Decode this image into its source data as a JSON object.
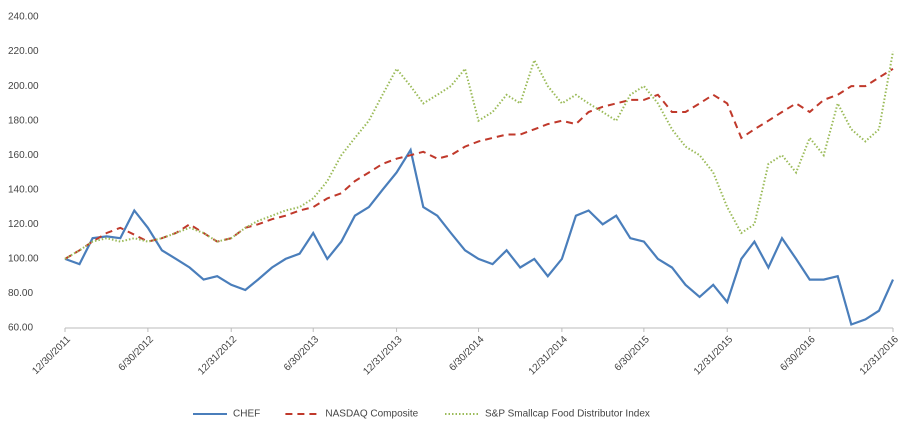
{
  "chart_data": {
    "type": "line",
    "x": [
      "12/30/2011",
      "1/31/2012",
      "2/29/2012",
      "3/31/2012",
      "4/30/2012",
      "5/31/2012",
      "6/30/2012",
      "7/31/2012",
      "8/31/2012",
      "9/30/2012",
      "10/31/2012",
      "11/30/2012",
      "12/31/2012",
      "1/31/2013",
      "2/28/2013",
      "3/31/2013",
      "4/30/2013",
      "5/31/2013",
      "6/30/2013",
      "7/31/2013",
      "8/31/2013",
      "9/30/2013",
      "10/31/2013",
      "11/30/2013",
      "12/31/2013",
      "1/31/2014",
      "2/28/2014",
      "3/31/2014",
      "4/30/2014",
      "5/31/2014",
      "6/30/2014",
      "7/31/2014",
      "8/31/2014",
      "9/30/2014",
      "10/31/2014",
      "11/30/2014",
      "12/31/2014",
      "1/31/2015",
      "2/28/2015",
      "3/31/2015",
      "4/30/2015",
      "5/31/2015",
      "6/30/2015",
      "7/31/2015",
      "8/31/2015",
      "9/30/2015",
      "10/31/2015",
      "11/30/2015",
      "12/31/2015",
      "1/31/2016",
      "2/29/2016",
      "3/31/2016",
      "4/30/2016",
      "5/31/2016",
      "6/30/2016",
      "7/31/2016",
      "8/31/2016",
      "9/30/2016",
      "10/31/2016",
      "11/30/2016",
      "12/31/2016"
    ],
    "series": [
      {
        "name": "CHEF",
        "color": "#4a7ebb",
        "dash": "solid",
        "values": [
          100,
          97,
          112,
          113,
          112,
          128,
          118,
          105,
          100,
          95,
          88,
          90,
          85,
          82,
          88,
          95,
          100,
          103,
          115,
          100,
          110,
          125,
          130,
          140,
          150,
          163,
          130,
          125,
          115,
          105,
          100,
          97,
          105,
          95,
          100,
          90,
          100,
          125,
          128,
          120,
          125,
          112,
          110,
          100,
          95,
          85,
          78,
          85,
          75,
          100,
          110,
          95,
          112,
          100,
          88,
          88,
          90,
          62,
          65,
          70,
          88
        ]
      },
      {
        "name": "NASDAQ Composite",
        "color": "#c0392b",
        "dash": "dashed",
        "values": [
          100,
          105,
          110,
          115,
          118,
          114,
          110,
          112,
          115,
          120,
          115,
          110,
          112,
          118,
          120,
          123,
          125,
          128,
          130,
          135,
          138,
          145,
          150,
          155,
          158,
          160,
          162,
          158,
          160,
          165,
          168,
          170,
          172,
          172,
          175,
          178,
          180,
          178,
          185,
          188,
          190,
          192,
          192,
          195,
          185,
          185,
          190,
          195,
          190,
          170,
          175,
          180,
          185,
          190,
          185,
          192,
          195,
          200,
          200,
          205,
          210
        ]
      },
      {
        "name": "S&P Smallcap Food Distributor Index",
        "color": "#9bbb59",
        "dash": "dotted",
        "values": [
          100,
          105,
          110,
          112,
          110,
          112,
          110,
          112,
          115,
          118,
          115,
          110,
          112,
          118,
          122,
          125,
          128,
          130,
          135,
          145,
          160,
          170,
          180,
          195,
          210,
          200,
          190,
          195,
          200,
          210,
          180,
          185,
          195,
          190,
          215,
          200,
          190,
          195,
          190,
          185,
          180,
          195,
          200,
          190,
          175,
          165,
          160,
          150,
          130,
          115,
          120,
          155,
          160,
          150,
          170,
          160,
          190,
          175,
          168,
          175,
          220
        ]
      }
    ],
    "xlim": [
      "12/30/2011",
      "12/31/2016"
    ],
    "xticks": [
      "12/30/2011",
      "6/30/2012",
      "12/31/2012",
      "6/30/2013",
      "12/31/2013",
      "6/30/2014",
      "12/31/2014",
      "6/30/2015",
      "12/31/2015",
      "6/30/2016",
      "12/31/2016"
    ],
    "ylim": [
      60,
      240
    ],
    "yticks": [
      {
        "value": 60,
        "label": "60.00"
      },
      {
        "value": 80,
        "label": "80.00"
      },
      {
        "value": 100,
        "label": "100.00"
      },
      {
        "value": 120,
        "label": "120.00"
      },
      {
        "value": 140,
        "label": "140.00"
      },
      {
        "value": 160,
        "label": "160.00"
      },
      {
        "value": 180,
        "label": "180.00"
      },
      {
        "value": 200,
        "label": "200.00"
      },
      {
        "value": 220,
        "label": "220.00"
      },
      {
        "value": 240,
        "label": "240.00"
      }
    ],
    "grid": false,
    "legend": "bottom"
  }
}
